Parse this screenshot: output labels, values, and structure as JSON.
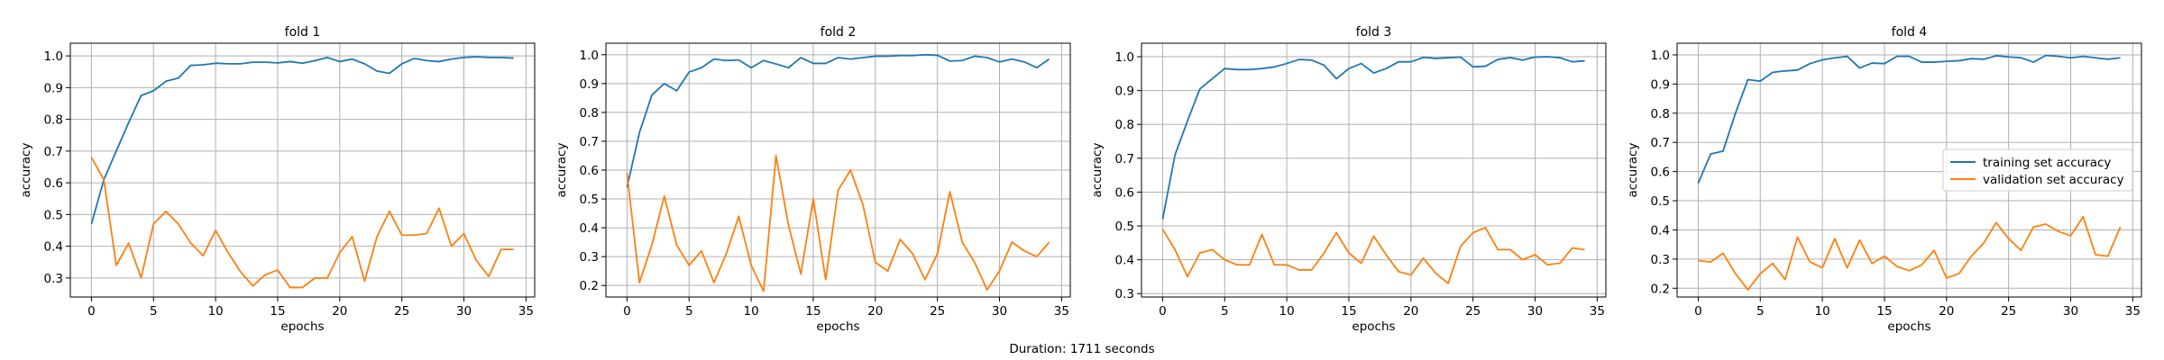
{
  "figure": {
    "caption": "Duration: 1711 seconds"
  },
  "colors": {
    "training": "#1f77b4",
    "validation": "#ff7f0e",
    "grid": "#b0b0b0",
    "axis": "#000000"
  },
  "chart_data": [
    {
      "type": "line",
      "title": "fold 1",
      "xlabel": "epochs",
      "ylabel": "accuracy",
      "xlim": [
        -1.7,
        35.7
      ],
      "ylim": [
        0.24,
        1.04
      ],
      "xticks": [
        0,
        5,
        10,
        15,
        20,
        25,
        30,
        35
      ],
      "yticks": [
        0.3,
        0.4,
        0.5,
        0.6,
        0.7,
        0.8,
        0.9,
        1.0
      ],
      "yticklabels": [
        "0.3",
        "0.4",
        "0.5",
        "0.6",
        "0.7",
        "0.8",
        "0.9",
        "1.0"
      ],
      "grid": true,
      "legend": "none",
      "series": [
        {
          "name": "training set accuracy",
          "color": "#1f77b4",
          "values": [
            0.47,
            0.61,
            0.7,
            0.79,
            0.875,
            0.89,
            0.92,
            0.93,
            0.97,
            0.972,
            0.977,
            0.975,
            0.975,
            0.98,
            0.98,
            0.978,
            0.982,
            0.977,
            0.985,
            0.995,
            0.982,
            0.99,
            0.975,
            0.952,
            0.945,
            0.975,
            0.992,
            0.985,
            0.982,
            0.99,
            0.995,
            0.997,
            0.995,
            0.995,
            0.993
          ]
        },
        {
          "name": "validation set accuracy",
          "color": "#ff7f0e",
          "values": [
            0.68,
            0.61,
            0.34,
            0.41,
            0.3,
            0.47,
            0.51,
            0.47,
            0.41,
            0.37,
            0.45,
            0.38,
            0.32,
            0.275,
            0.31,
            0.325,
            0.27,
            0.27,
            0.3,
            0.3,
            0.38,
            0.43,
            0.29,
            0.43,
            0.51,
            0.435,
            0.435,
            0.44,
            0.52,
            0.4,
            0.44,
            0.355,
            0.305,
            0.39,
            0.39
          ]
        }
      ]
    },
    {
      "type": "line",
      "title": "fold 2",
      "xlabel": "epochs",
      "ylabel": "accuracy",
      "xlim": [
        -1.7,
        35.7
      ],
      "ylim": [
        0.16,
        1.04
      ],
      "xticks": [
        0,
        5,
        10,
        15,
        20,
        25,
        30,
        35
      ],
      "yticks": [
        0.2,
        0.3,
        0.4,
        0.5,
        0.6,
        0.7,
        0.8,
        0.9,
        1.0
      ],
      "yticklabels": [
        "0.2",
        "0.3",
        "0.4",
        "0.5",
        "0.6",
        "0.7",
        "0.8",
        "0.9",
        "1.0"
      ],
      "grid": true,
      "legend": "none",
      "series": [
        {
          "name": "training set accuracy",
          "color": "#1f77b4",
          "values": [
            0.54,
            0.73,
            0.86,
            0.9,
            0.875,
            0.94,
            0.955,
            0.985,
            0.98,
            0.982,
            0.955,
            0.98,
            0.968,
            0.955,
            0.99,
            0.97,
            0.97,
            0.99,
            0.985,
            0.99,
            0.995,
            0.995,
            0.997,
            0.997,
            1.0,
            0.998,
            0.978,
            0.98,
            0.995,
            0.99,
            0.975,
            0.985,
            0.975,
            0.955,
            0.985
          ]
        },
        {
          "name": "validation set accuracy",
          "color": "#ff7f0e",
          "values": [
            0.59,
            0.21,
            0.34,
            0.51,
            0.34,
            0.27,
            0.32,
            0.21,
            0.31,
            0.44,
            0.27,
            0.18,
            0.65,
            0.41,
            0.24,
            0.5,
            0.22,
            0.53,
            0.6,
            0.48,
            0.28,
            0.25,
            0.36,
            0.31,
            0.22,
            0.31,
            0.525,
            0.35,
            0.28,
            0.185,
            0.25,
            0.35,
            0.32,
            0.3,
            0.35
          ]
        }
      ]
    },
    {
      "type": "line",
      "title": "fold 3",
      "xlabel": "epochs",
      "ylabel": "accuracy",
      "xlim": [
        -1.7,
        35.7
      ],
      "ylim": [
        0.29,
        1.04
      ],
      "xticks": [
        0,
        5,
        10,
        15,
        20,
        25,
        30,
        35
      ],
      "yticks": [
        0.3,
        0.4,
        0.5,
        0.6,
        0.7,
        0.8,
        0.9,
        1.0
      ],
      "yticklabels": [
        "0.3",
        "0.4",
        "0.5",
        "0.6",
        "0.7",
        "0.8",
        "0.9",
        "1.0"
      ],
      "grid": true,
      "legend": "none",
      "series": [
        {
          "name": "training set accuracy",
          "color": "#1f77b4",
          "values": [
            0.52,
            0.71,
            0.81,
            0.905,
            0.935,
            0.965,
            0.962,
            0.962,
            0.965,
            0.97,
            0.98,
            0.992,
            0.99,
            0.975,
            0.935,
            0.965,
            0.98,
            0.952,
            0.965,
            0.985,
            0.985,
            0.998,
            0.995,
            0.997,
            0.999,
            0.97,
            0.972,
            0.992,
            0.997,
            0.99,
            0.999,
            1.0,
            0.997,
            0.985,
            0.988
          ]
        },
        {
          "name": "validation set accuracy",
          "color": "#ff7f0e",
          "values": [
            0.49,
            0.43,
            0.35,
            0.42,
            0.43,
            0.4,
            0.385,
            0.385,
            0.475,
            0.385,
            0.385,
            0.37,
            0.37,
            0.42,
            0.48,
            0.42,
            0.39,
            0.47,
            0.415,
            0.365,
            0.355,
            0.405,
            0.36,
            0.33,
            0.44,
            0.48,
            0.495,
            0.43,
            0.43,
            0.4,
            0.415,
            0.385,
            0.39,
            0.435,
            0.43
          ]
        }
      ]
    },
    {
      "type": "line",
      "title": "fold 4",
      "xlabel": "epochs",
      "ylabel": "accuracy",
      "xlim": [
        -1.7,
        35.7
      ],
      "ylim": [
        0.17,
        1.04
      ],
      "xticks": [
        0,
        5,
        10,
        15,
        20,
        25,
        30,
        35
      ],
      "yticks": [
        0.2,
        0.3,
        0.4,
        0.5,
        0.6,
        0.7,
        0.8,
        0.9,
        1.0
      ],
      "yticklabels": [
        "0.2",
        "0.3",
        "0.4",
        "0.5",
        "0.6",
        "0.7",
        "0.8",
        "0.9",
        "1.0"
      ],
      "grid": true,
      "legend": "right",
      "series": [
        {
          "name": "training set accuracy",
          "color": "#1f77b4",
          "values": [
            0.56,
            0.66,
            0.67,
            0.8,
            0.915,
            0.91,
            0.94,
            0.945,
            0.948,
            0.97,
            0.983,
            0.99,
            0.995,
            0.955,
            0.972,
            0.97,
            0.995,
            0.995,
            0.975,
            0.975,
            0.978,
            0.98,
            0.987,
            0.985,
            0.997,
            0.993,
            0.99,
            0.975,
            0.998,
            0.995,
            0.99,
            0.995,
            0.99,
            0.985,
            0.99
          ]
        },
        {
          "name": "validation set accuracy",
          "color": "#ff7f0e",
          "values": [
            0.295,
            0.29,
            0.32,
            0.25,
            0.195,
            0.25,
            0.285,
            0.23,
            0.375,
            0.29,
            0.27,
            0.37,
            0.27,
            0.365,
            0.285,
            0.31,
            0.275,
            0.26,
            0.28,
            0.33,
            0.235,
            0.25,
            0.31,
            0.355,
            0.425,
            0.37,
            0.33,
            0.41,
            0.42,
            0.395,
            0.38,
            0.445,
            0.315,
            0.31,
            0.41
          ]
        }
      ]
    }
  ]
}
